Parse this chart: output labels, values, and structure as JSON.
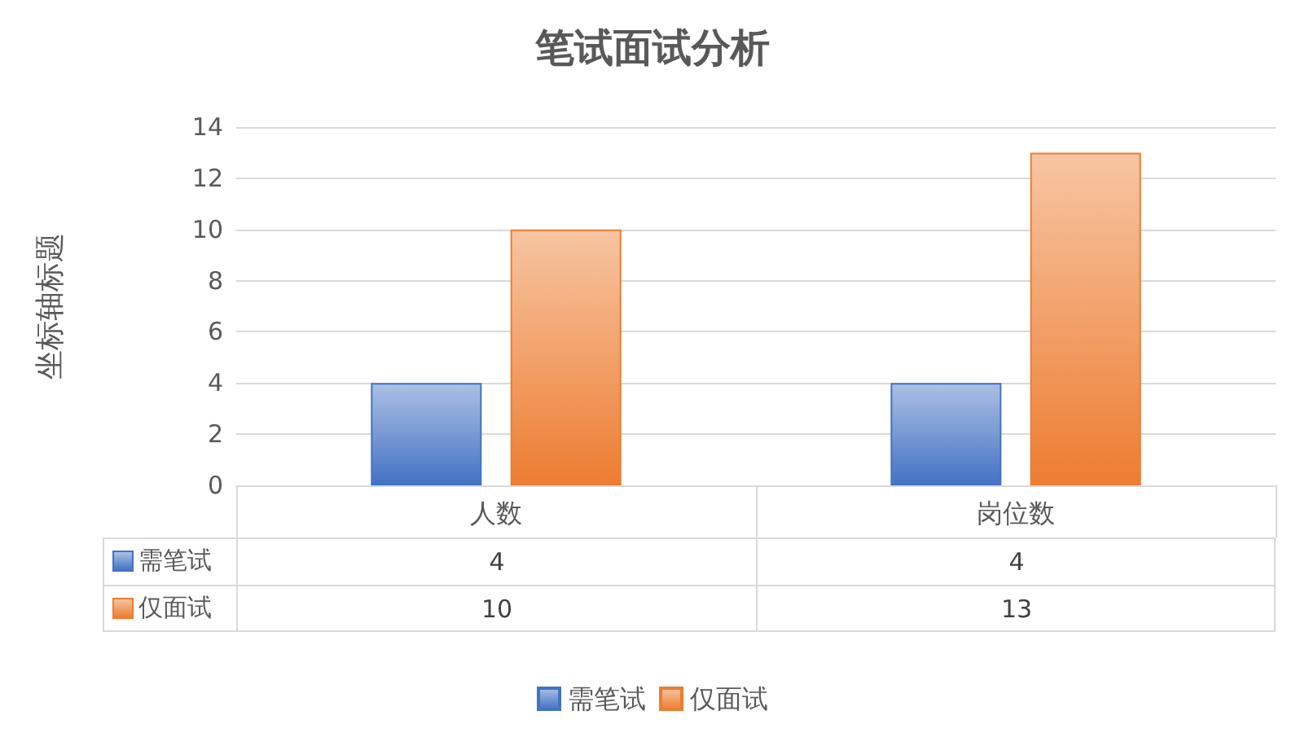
{
  "chart_data": {
    "type": "bar",
    "title": "笔试面试分析",
    "ylabel": "坐标轴标题",
    "categories": [
      "人数",
      "岗位数"
    ],
    "series": [
      {
        "name": "需笔试",
        "color": "#4472c4",
        "values": [
          4,
          4
        ]
      },
      {
        "name": "仅面试",
        "color": "#ed7d31",
        "values": [
          10,
          13
        ]
      }
    ],
    "ylim": [
      0,
      14
    ],
    "yticks": [
      0,
      2,
      4,
      6,
      8,
      10,
      12,
      14
    ],
    "grid": "y",
    "legend": "bottom",
    "data_labels": true
  }
}
